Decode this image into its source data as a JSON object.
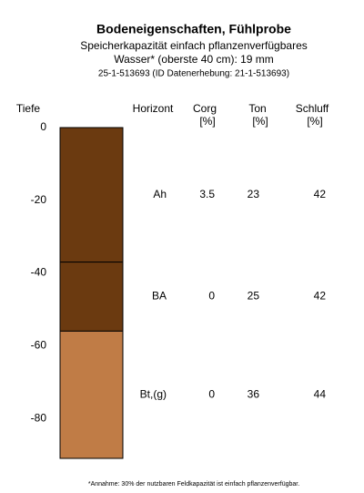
{
  "chart_data": {
    "type": "soil-profile",
    "title": "Bodeneigenschaften, Fühlprobe",
    "subtitle": [
      "Speicherkapazität einfach pflanzenverfügbares",
      "Wasser* (oberste 40 cm): 19 mm",
      "25-1-513693 (ID Datenerhebung: 21-1-513693)"
    ],
    "y_label": "Tiefe",
    "ylim": [
      0,
      -91
    ],
    "yticks": [
      0,
      -20,
      -40,
      -60,
      -80
    ],
    "columns": [
      {
        "label": "Horizont"
      },
      {
        "label": "Corg",
        "unit": "[%]"
      },
      {
        "label": "Ton",
        "unit": "[%]"
      },
      {
        "label": "Schluff",
        "unit": "[%]"
      }
    ],
    "layers": [
      {
        "name": "Ah",
        "top": 0,
        "bottom": -37,
        "color": "#6b3a10",
        "corg": 3.5,
        "ton": 23,
        "schluff": 42
      },
      {
        "name": "BA",
        "top": -37,
        "bottom": -56,
        "color": "#6b3a10",
        "corg": 0,
        "ton": 25,
        "schluff": 42
      },
      {
        "name": "Bt,(g)",
        "top": -56,
        "bottom": -91,
        "color": "#c07c46",
        "corg": 0,
        "ton": 36,
        "schluff": 44
      }
    ],
    "footnote": "*Annahme: 30% der nutzbaren Feldkapazität ist einfach pflanzenverfügbar."
  }
}
